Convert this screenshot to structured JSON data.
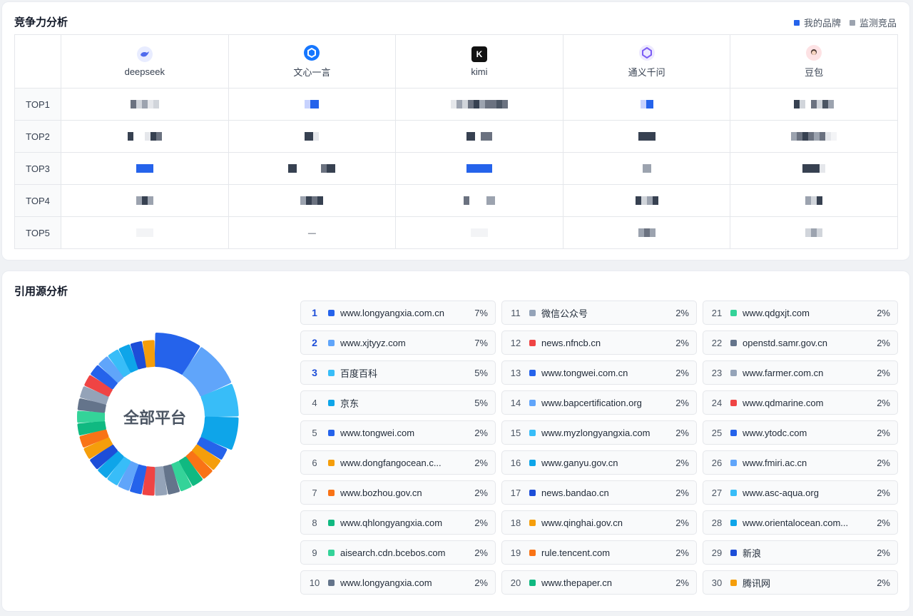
{
  "competition": {
    "title": "竞争力分析",
    "legend": [
      {
        "label": "我的品牌",
        "color": "#2563eb"
      },
      {
        "label": "监测竞品",
        "color": "#9ca3af"
      }
    ],
    "platforms": [
      {
        "name": "deepseek",
        "icon": "deepseek-icon",
        "color": "#6d83f2"
      },
      {
        "name": "文心一言",
        "icon": "wenxin-icon",
        "color": "#1677ff"
      },
      {
        "name": "kimi",
        "icon": "kimi-icon",
        "color": "#111111"
      },
      {
        "name": "通义千问",
        "icon": "tongyi-icon",
        "color": "#7c5cf5"
      },
      {
        "name": "豆包",
        "icon": "doubao-icon",
        "color": "#f4a3a8"
      }
    ],
    "ranks": [
      "TOP1",
      "TOP2",
      "TOP3",
      "TOP4",
      "TOP5"
    ],
    "top5_kimi_dash": "—"
  },
  "citation": {
    "title": "引用源分析",
    "center_label": "全部平台",
    "sources": [
      {
        "rank": "1",
        "name": "www.longyangxia.com.cn",
        "pct": "7%",
        "value": 7,
        "color": "#2563eb"
      },
      {
        "rank": "2",
        "name": "www.xjtyyz.com",
        "pct": "7%",
        "value": 7,
        "color": "#60a5fa"
      },
      {
        "rank": "3",
        "name": "百度百科",
        "pct": "5%",
        "value": 5,
        "color": "#38bdf8"
      },
      {
        "rank": "4",
        "name": "京东",
        "pct": "5%",
        "value": 5,
        "color": "#0ea5e9"
      },
      {
        "rank": "5",
        "name": "www.tongwei.com",
        "pct": "2%",
        "value": 2,
        "color": "#2563eb"
      },
      {
        "rank": "6",
        "name": "www.dongfangocean.c...",
        "pct": "2%",
        "value": 2,
        "color": "#f59e0b"
      },
      {
        "rank": "7",
        "name": "www.bozhou.gov.cn",
        "pct": "2%",
        "value": 2,
        "color": "#f97316"
      },
      {
        "rank": "8",
        "name": "www.qhlongyangxia.com",
        "pct": "2%",
        "value": 2,
        "color": "#10b981"
      },
      {
        "rank": "9",
        "name": "aisearch.cdn.bcebos.com",
        "pct": "2%",
        "value": 2,
        "color": "#34d399"
      },
      {
        "rank": "10",
        "name": "www.longyangxia.com",
        "pct": "2%",
        "value": 2,
        "color": "#64748b"
      },
      {
        "rank": "11",
        "name": "微信公众号",
        "pct": "2%",
        "value": 2,
        "color": "#94a3b8"
      },
      {
        "rank": "12",
        "name": "news.nfncb.cn",
        "pct": "2%",
        "value": 2,
        "color": "#ef4444"
      },
      {
        "rank": "13",
        "name": "www.tongwei.com.cn",
        "pct": "2%",
        "value": 2,
        "color": "#2563eb"
      },
      {
        "rank": "14",
        "name": "www.bapcertification.org",
        "pct": "2%",
        "value": 2,
        "color": "#60a5fa"
      },
      {
        "rank": "15",
        "name": "www.myzlongyangxia.com",
        "pct": "2%",
        "value": 2,
        "color": "#38bdf8"
      },
      {
        "rank": "16",
        "name": "www.ganyu.gov.cn",
        "pct": "2%",
        "value": 2,
        "color": "#0ea5e9"
      },
      {
        "rank": "17",
        "name": "news.bandao.cn",
        "pct": "2%",
        "value": 2,
        "color": "#1d4ed8"
      },
      {
        "rank": "18",
        "name": "www.qinghai.gov.cn",
        "pct": "2%",
        "value": 2,
        "color": "#f59e0b"
      },
      {
        "rank": "19",
        "name": "rule.tencent.com",
        "pct": "2%",
        "value": 2,
        "color": "#f97316"
      },
      {
        "rank": "20",
        "name": "www.thepaper.cn",
        "pct": "2%",
        "value": 2,
        "color": "#10b981"
      },
      {
        "rank": "21",
        "name": "www.qdgxjt.com",
        "pct": "2%",
        "value": 2,
        "color": "#34d399"
      },
      {
        "rank": "22",
        "name": "openstd.samr.gov.cn",
        "pct": "2%",
        "value": 2,
        "color": "#64748b"
      },
      {
        "rank": "23",
        "name": "www.farmer.com.cn",
        "pct": "2%",
        "value": 2,
        "color": "#94a3b8"
      },
      {
        "rank": "24",
        "name": "www.qdmarine.com",
        "pct": "2%",
        "value": 2,
        "color": "#ef4444"
      },
      {
        "rank": "25",
        "name": "www.ytodc.com",
        "pct": "2%",
        "value": 2,
        "color": "#2563eb"
      },
      {
        "rank": "26",
        "name": "www.fmiri.ac.cn",
        "pct": "2%",
        "value": 2,
        "color": "#60a5fa"
      },
      {
        "rank": "27",
        "name": "www.asc-aqua.org",
        "pct": "2%",
        "value": 2,
        "color": "#38bdf8"
      },
      {
        "rank": "28",
        "name": "www.orientalocean.com...",
        "pct": "2%",
        "value": 2,
        "color": "#0ea5e9"
      },
      {
        "rank": "29",
        "name": "新浪",
        "pct": "2%",
        "value": 2,
        "color": "#1d4ed8"
      },
      {
        "rank": "30",
        "name": "腾讯网",
        "pct": "2%",
        "value": 2,
        "color": "#f59e0b"
      }
    ]
  }
}
